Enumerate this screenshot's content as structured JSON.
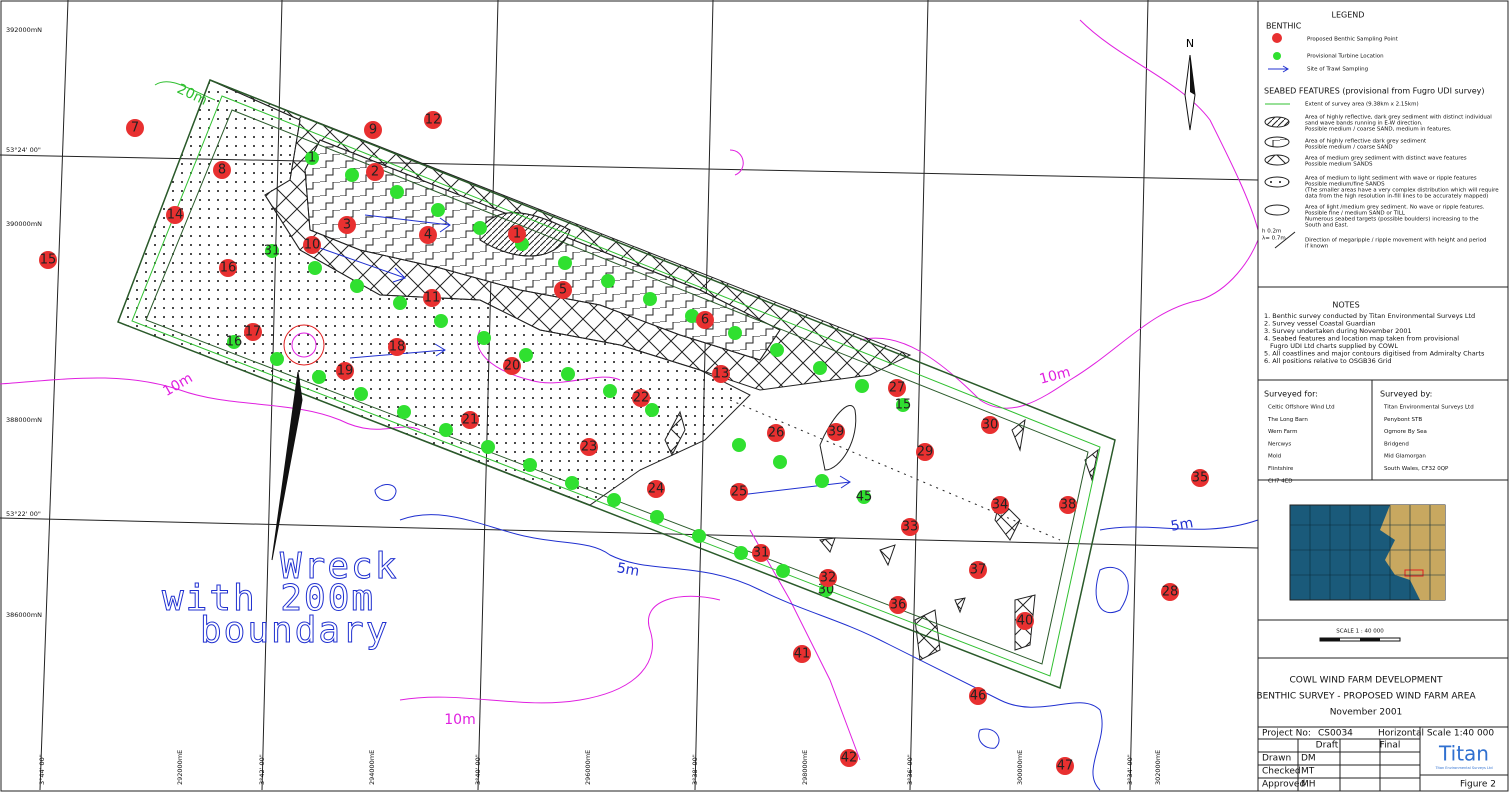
{
  "map": {
    "north": "N",
    "benthic_points": [
      "7",
      "9",
      "12",
      "8",
      "2",
      "14",
      "3",
      "4",
      "1",
      "15",
      "16",
      "10",
      "11",
      "5",
      "6",
      "17",
      "18",
      "19",
      "20",
      "13",
      "22",
      "21",
      "23",
      "26",
      "39",
      "27",
      "30",
      "29",
      "24",
      "25",
      "35",
      "34",
      "38",
      "33",
      "31",
      "32",
      "37",
      "28",
      "36",
      "40",
      "41",
      "46",
      "42",
      "47"
    ],
    "turbine_labels": [
      "1",
      "31",
      "16",
      "15",
      "45",
      "30"
    ],
    "contour_labels": [
      "20m",
      "10m",
      "10m",
      "10m",
      "5m",
      "5m"
    ],
    "wreck_label": [
      "Wreck",
      "with 200m",
      "boundary"
    ],
    "northings": [
      "392000mN",
      "390000mN",
      "388000mN",
      "386000mN"
    ],
    "latitudes": [
      "53°24' 00\"",
      "53°22' 00\""
    ],
    "bottom_labels": [
      "3°44' 00\"",
      "292000mE",
      "3°42' 00\"",
      "294000mE",
      "3°40' 00\"",
      "296000mE",
      "3°38' 00\"",
      "298000mE",
      "3°36' 00\"",
      "300000mE",
      "3°34' 00\"",
      "302000mE"
    ]
  },
  "legend": {
    "title": "LEGEND",
    "benthic_heading": "BENTHIC",
    "benthic_items": [
      "Proposed Benthic Sampling Point",
      "Provisional Turbine Location",
      "Site of Trawl Sampling"
    ],
    "seabed_heading": "SEABED FEATURES (provisional from Fugro UDI survey)",
    "seabed_items": [
      [
        "Extent of survey area (9.38km x 2.15km)"
      ],
      [
        "Area of highly reflective, dark grey sediment with distinct individual",
        "sand wave bands running in E-W direction.",
        "Possible medium / coarse SAND, medium in features."
      ],
      [
        "Area of highly reflective dark grey sediment",
        "Possible medium / coarse SAND"
      ],
      [
        "Area of medium grey sediment with distinct wave features",
        "Possible medium SANDS"
      ],
      [
        "Area of medium to light sediment with wave or ripple features",
        "Possible medium/fine SANDS",
        "(The smaller areas have a very complex distribution which will require",
        "data from the high resolution in-fill lines to be accurately mapped)"
      ],
      [
        "Area of light /medium grey sediment. No wave or ripple features.",
        "Possible fine / medium SAND or TILL",
        "Numerous seabed targets (possible boulders) increasing to the",
        "South and East."
      ],
      [
        "Direction of megaripple / ripple movement with height and period",
        "if known"
      ]
    ],
    "megaripple_symbol": [
      "h  0.2m",
      "λ= 0.7m"
    ]
  },
  "notes": {
    "title": "NOTES",
    "items": [
      [
        "1. Benthic survey conducted by Titan Environmental Surveys Ltd"
      ],
      [
        "2. Survey vessel Coastal Guardian"
      ],
      [
        "3. Survey undertaken during November 2001"
      ],
      [
        "4. Seabed features and location map taken from provisional",
        "Fugro UDI Ltd charts supplied by COWL"
      ],
      [
        "5. All coastlines and major contours digitised from Admiralty Charts"
      ],
      [
        "6. All positions relative to OSGB36 Grid"
      ]
    ]
  },
  "surveyed_for": {
    "title": "Surveyed for:",
    "lines": [
      "Celtic Offshore Wind Ltd",
      "The Long Barn",
      "Wern Farm",
      "Nercwys",
      "Mold",
      "Flintshire",
      "CH7 4ED"
    ]
  },
  "surveyed_by": {
    "title": "Surveyed by:",
    "lines": [
      "Titan Environmental Surveys Ltd",
      "Penybont STB",
      "Ogmore By Sea",
      "Bridgend",
      "Mid Glamorgan",
      "South Wales, CF32 0QP"
    ]
  },
  "scale_bar": "SCALE 1 : 40 000",
  "title_block": [
    "COWL WIND FARM DEVELOPMENT",
    "BENTHIC SURVEY - PROPOSED WIND FARM AREA",
    "November 2001"
  ],
  "table": {
    "project_no_label": "Project No:",
    "project_no": "CS0034",
    "scale": "Horizontal Scale 1:40 000",
    "columns": [
      "Draft",
      "Final"
    ],
    "rows": [
      [
        "Drawn",
        "DM"
      ],
      [
        "Checked",
        "MT"
      ],
      [
        "Approved",
        "MH"
      ]
    ],
    "logo": "Titan",
    "logo_sub": "Titan Environmental Surveys Ltd",
    "figure": "Figure 2"
  }
}
